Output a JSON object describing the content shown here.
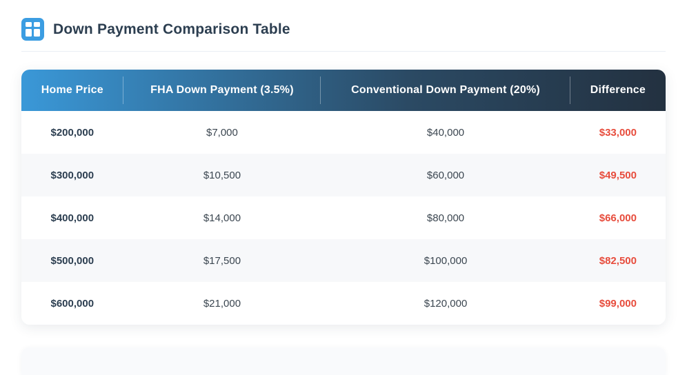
{
  "page": {
    "title": "Down Payment Comparison Table"
  },
  "icons": {
    "title_icon": "table-icon"
  },
  "colors": {
    "icon_blue": "#3b9de2",
    "header_gradient_start": "#3a98d8",
    "header_gradient_end": "#233140",
    "heading_navy": "#2c3e50",
    "difference_red": "#e74c3c",
    "row_alt_bg": "#f7f8fa"
  },
  "table": {
    "columns": [
      "Home Price",
      "FHA Down Payment (3.5%)",
      "Conventional Down Payment (20%)",
      "Difference"
    ],
    "rows": [
      {
        "home_price": "$200,000",
        "fha_down_payment": "$7,000",
        "conventional_down_payment": "$40,000",
        "difference": "$33,000"
      },
      {
        "home_price": "$300,000",
        "fha_down_payment": "$10,500",
        "conventional_down_payment": "$60,000",
        "difference": "$49,500"
      },
      {
        "home_price": "$400,000",
        "fha_down_payment": "$14,000",
        "conventional_down_payment": "$80,000",
        "difference": "$66,000"
      },
      {
        "home_price": "$500,000",
        "fha_down_payment": "$17,500",
        "conventional_down_payment": "$100,000",
        "difference": "$82,500"
      },
      {
        "home_price": "$600,000",
        "fha_down_payment": "$21,000",
        "conventional_down_payment": "$120,000",
        "difference": "$99,000"
      }
    ]
  }
}
